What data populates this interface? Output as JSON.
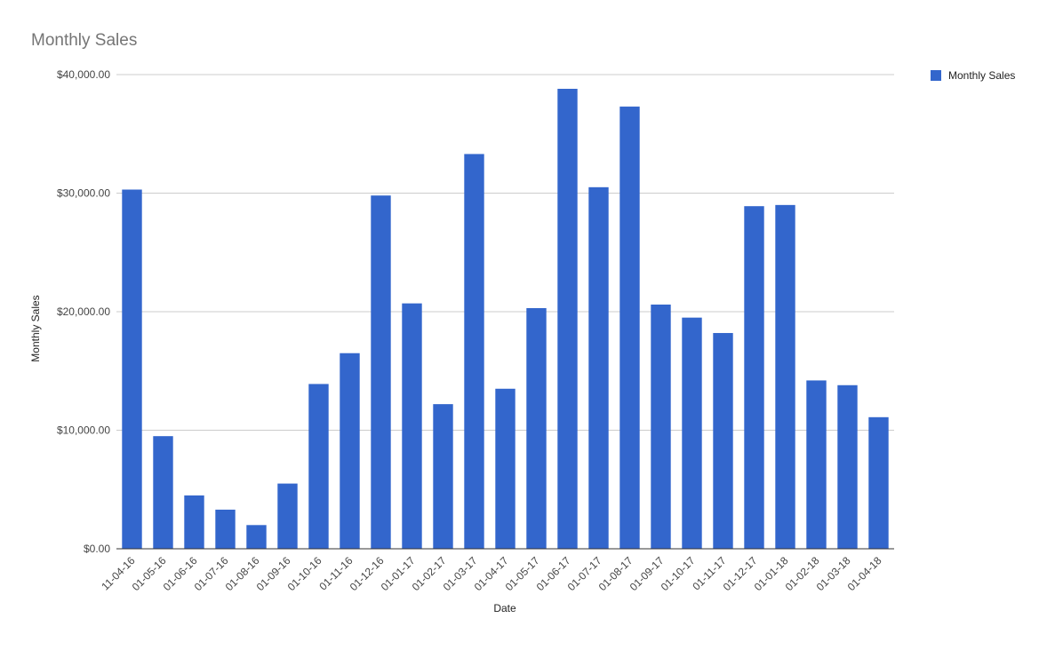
{
  "chart_data": {
    "type": "bar",
    "title": "Monthly Sales",
    "xlabel": "Date",
    "ylabel": "Monthly Sales",
    "ylim": [
      0,
      40000
    ],
    "yticks": [
      0,
      10000,
      20000,
      30000,
      40000
    ],
    "ytick_labels": [
      "$0.00",
      "$10,000.00",
      "$20,000.00",
      "$30,000.00",
      "$40,000.00"
    ],
    "grid": true,
    "legend_position": "top-right",
    "categories": [
      "11-04-16",
      "01-05-16",
      "01-06-16",
      "01-07-16",
      "01-08-16",
      "01-09-16",
      "01-10-16",
      "01-11-16",
      "01-12-16",
      "01-01-17",
      "01-02-17",
      "01-03-17",
      "01-04-17",
      "01-05-17",
      "01-06-17",
      "01-07-17",
      "01-08-17",
      "01-09-17",
      "01-10-17",
      "01-11-17",
      "01-12-17",
      "01-01-18",
      "01-02-18",
      "01-03-18",
      "01-04-18"
    ],
    "series": [
      {
        "name": "Monthly Sales",
        "color": "#3366cc",
        "values": [
          30300,
          9500,
          4500,
          3300,
          2000,
          5500,
          13900,
          16500,
          29800,
          20700,
          12200,
          33300,
          13500,
          20300,
          38800,
          30500,
          37300,
          20600,
          19500,
          18200,
          28900,
          29000,
          14200,
          13800,
          11100
        ]
      }
    ]
  }
}
